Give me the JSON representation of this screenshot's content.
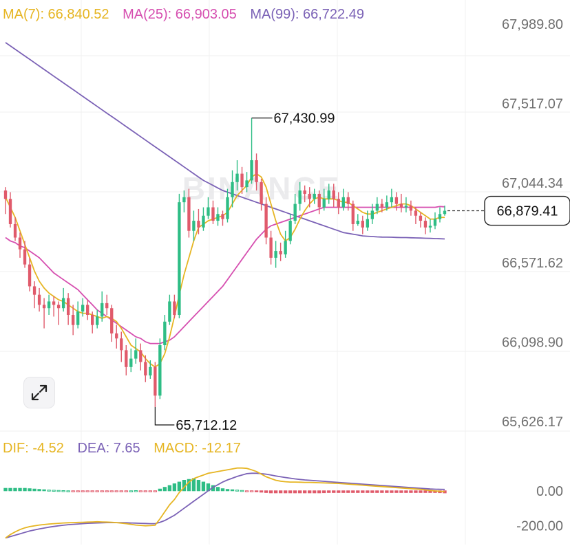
{
  "legend": {
    "ma7": "MA(7): 66,840.52",
    "ma25": "MA(25): 66,903.05",
    "ma99": "MA(99): 66,722.49"
  },
  "macd_legend": {
    "dif": "DIF: -4.52",
    "dea": "DEA: 7.65",
    "macd": "MACD: -12.17"
  },
  "price_axis": {
    "ticks": [
      "67,989.80",
      "67,517.07",
      "67,044.34",
      "66,571.62",
      "66,098.90",
      "65,626.17"
    ],
    "tick_values": [
      67989.8,
      67517.07,
      67044.34,
      66571.62,
      66098.9,
      65626.17
    ]
  },
  "macd_axis": {
    "ticks": [
      "0.00",
      "-200.00"
    ],
    "tick_values": [
      0,
      -200
    ]
  },
  "current_price": {
    "label": "66,879.41",
    "value": 66879.41
  },
  "high_marker": {
    "label": "67,430.99",
    "value": 67430.99
  },
  "low_marker": {
    "label": "65,712.12",
    "value": 65712.12
  },
  "watermark": "BINANCE",
  "colors": {
    "up": "#2ebd85",
    "down": "#e05a6b",
    "ma7": "#e6b522",
    "ma25": "#d64fb0",
    "ma99": "#7b62b6",
    "dif": "#e6b522",
    "dea": "#7b62b6",
    "axis_text": "#6f6f6f",
    "grid": "#eeeeee"
  },
  "icons": {
    "expand": "expand-arrows-icon"
  },
  "chart_data": {
    "type": "candlestick",
    "title": "",
    "ylim": [
      65550,
      68100
    ],
    "grid": true,
    "candles": [
      [
        67000,
        66950,
        67020,
        66860
      ],
      [
        66950,
        66800,
        66990,
        66780
      ],
      [
        66800,
        66720,
        66840,
        66700
      ],
      [
        66720,
        66650,
        66750,
        66600
      ],
      [
        66650,
        66560,
        66700,
        66540
      ],
      [
        66560,
        66430,
        66600,
        66400
      ],
      [
        66430,
        66380,
        66460,
        66300
      ],
      [
        66380,
        66320,
        66420,
        66280
      ],
      [
        66320,
        66300,
        66360,
        66180
      ],
      [
        66300,
        66340,
        66380,
        66260
      ],
      [
        66340,
        66320,
        66370,
        66250
      ],
      [
        66320,
        66300,
        66340,
        66200
      ],
      [
        66300,
        66360,
        66420,
        66280
      ],
      [
        66360,
        66260,
        66390,
        66200
      ],
      [
        66260,
        66200,
        66320,
        66140
      ],
      [
        66200,
        66280,
        66340,
        66180
      ],
      [
        66280,
        66320,
        66360,
        66250
      ],
      [
        66320,
        66260,
        66350,
        66230
      ],
      [
        66260,
        66200,
        66280,
        66150
      ],
      [
        66200,
        66250,
        66290,
        66180
      ],
      [
        66250,
        66330,
        66400,
        66220
      ],
      [
        66330,
        66300,
        66380,
        66260
      ],
      [
        66300,
        66150,
        66320,
        66100
      ],
      [
        66150,
        66120,
        66200,
        66060
      ],
      [
        66120,
        66050,
        66160,
        65980
      ],
      [
        66050,
        65950,
        66080,
        65900
      ],
      [
        65950,
        66000,
        66060,
        65920
      ],
      [
        66000,
        66050,
        66120,
        65970
      ],
      [
        66050,
        65980,
        66090,
        65930
      ],
      [
        65980,
        65900,
        66020,
        65860
      ],
      [
        65900,
        65950,
        65990,
        65880
      ],
      [
        65950,
        65780,
        65980,
        65712.12
      ],
      [
        65780,
        66080,
        66120,
        65760
      ],
      [
        66080,
        66220,
        66260,
        66050
      ],
      [
        66220,
        66340,
        66380,
        66200
      ],
      [
        66340,
        66260,
        66380,
        66240
      ],
      [
        66260,
        66930,
        66980,
        66240
      ],
      [
        66930,
        66960,
        67000,
        66870
      ],
      [
        66960,
        66760,
        67010,
        66720
      ],
      [
        66760,
        66820,
        66880,
        66700
      ],
      [
        66820,
        66780,
        66890,
        66740
      ],
      [
        66780,
        66850,
        66900,
        66760
      ],
      [
        66850,
        66900,
        66960,
        66830
      ],
      [
        66900,
        66820,
        66940,
        66800
      ],
      [
        66820,
        66860,
        66900,
        66790
      ],
      [
        66860,
        66830,
        66880,
        66790
      ],
      [
        66830,
        66960,
        67010,
        66810
      ],
      [
        66960,
        67050,
        67120,
        66900
      ],
      [
        67050,
        67100,
        67180,
        67000
      ],
      [
        67100,
        67020,
        67140,
        66980
      ],
      [
        67020,
        67060,
        67110,
        66990
      ],
      [
        67060,
        67180,
        67430.99,
        67040
      ],
      [
        67180,
        67050,
        67220,
        67000
      ],
      [
        67050,
        66920,
        67070,
        66880
      ],
      [
        66920,
        66720,
        66960,
        66680
      ],
      [
        66720,
        66600,
        66760,
        66560
      ],
      [
        66600,
        66640,
        66700,
        66540
      ],
      [
        66640,
        66620,
        66690,
        66580
      ],
      [
        66620,
        66700,
        66760,
        66600
      ],
      [
        66700,
        66820,
        66860,
        66680
      ],
      [
        66820,
        66920,
        66980,
        66800
      ],
      [
        66920,
        67000,
        67050,
        66880
      ],
      [
        67000,
        66980,
        67030,
        66930
      ],
      [
        66980,
        66950,
        67020,
        66900
      ],
      [
        66950,
        66980,
        67010,
        66920
      ],
      [
        66980,
        66900,
        67000,
        66860
      ],
      [
        66900,
        66950,
        67010,
        66880
      ],
      [
        66950,
        67000,
        67040,
        66920
      ],
      [
        67000,
        66950,
        67040,
        66900
      ],
      [
        66950,
        66900,
        66990,
        66860
      ],
      [
        66900,
        66960,
        67010,
        66880
      ],
      [
        66960,
        66920,
        66990,
        66880
      ],
      [
        66920,
        66800,
        66940,
        66760
      ],
      [
        66800,
        66820,
        66860,
        66790
      ],
      [
        66820,
        66780,
        66850,
        66740
      ],
      [
        66780,
        66830,
        66880,
        66760
      ],
      [
        66830,
        66880,
        66920,
        66800
      ],
      [
        66880,
        66920,
        66960,
        66860
      ],
      [
        66920,
        66900,
        66950,
        66870
      ],
      [
        66900,
        66930,
        66970,
        66880
      ],
      [
        66930,
        66960,
        67010,
        66900
      ],
      [
        66960,
        66920,
        66990,
        66880
      ],
      [
        66920,
        66900,
        66980,
        66870
      ],
      [
        66900,
        66910,
        66960,
        66870
      ],
      [
        66910,
        66880,
        66940,
        66850
      ],
      [
        66880,
        66850,
        66900,
        66800
      ],
      [
        66850,
        66820,
        66870,
        66780
      ],
      [
        66820,
        66780,
        66840,
        66740
      ],
      [
        66780,
        66790,
        66830,
        66750
      ],
      [
        66790,
        66830,
        66870,
        66770
      ],
      [
        66830,
        66860,
        66900,
        66810
      ],
      [
        66860,
        66879.41,
        66910,
        66850
      ]
    ],
    "ma7": [
      66960,
      66900,
      66840,
      66760,
      66680,
      66600,
      66520,
      66460,
      66420,
      66390,
      66370,
      66350,
      66340,
      66320,
      66300,
      66280,
      66270,
      66270,
      66260,
      66250,
      66240,
      66250,
      66240,
      66220,
      66180,
      66130,
      66080,
      66060,
      66040,
      66000,
      65970,
      65950,
      65970,
      66030,
      66130,
      66250,
      66380,
      66500,
      66600,
      66700,
      66780,
      66800,
      66820,
      66830,
      66840,
      66850,
      66870,
      66920,
      66970,
      67000,
      67030,
      67080,
      67100,
      67080,
      67020,
      66920,
      66820,
      66740,
      66700,
      66720,
      66770,
      66830,
      66880,
      66920,
      66950,
      66960,
      66950,
      66950,
      66950,
      66940,
      66930,
      66930,
      66910,
      66890,
      66870,
      66860,
      66860,
      66870,
      66880,
      66890,
      66900,
      66910,
      66920,
      66920,
      66910,
      66890,
      66870,
      66850,
      66830,
      66830,
      66840,
      66840
    ],
    "ma25": [
      66720,
      66700,
      66690,
      66670,
      66660,
      66640,
      66620,
      66600,
      66570,
      66540,
      66510,
      66490,
      66470,
      66450,
      66430,
      66410,
      66380,
      66350,
      66320,
      66290,
      66270,
      66250,
      66230,
      66210,
      66190,
      66170,
      66150,
      66130,
      66120,
      66100,
      66090,
      66090,
      66090,
      66100,
      66110,
      66130,
      66160,
      66190,
      66220,
      66250,
      66280,
      66310,
      66340,
      66370,
      66400,
      66430,
      66470,
      66510,
      66550,
      66590,
      66630,
      66670,
      66710,
      66740,
      66770,
      66790,
      66800,
      66810,
      66820,
      66830,
      66840,
      66850,
      66860,
      66870,
      66880,
      66890,
      66900,
      66900,
      66900,
      66900,
      66900,
      66900,
      66900,
      66900,
      66900,
      66900,
      66900,
      66900,
      66900,
      66900,
      66900,
      66900,
      66900,
      66900,
      66900,
      66900,
      66900,
      66900,
      66900,
      66900,
      66905,
      66903.05
    ],
    "ma99": [
      67880,
      67860,
      67840,
      67820,
      67800,
      67780,
      67760,
      67740,
      67720,
      67700,
      67680,
      67660,
      67640,
      67620,
      67600,
      67580,
      67560,
      67540,
      67520,
      67500,
      67480,
      67460,
      67440,
      67420,
      67400,
      67380,
      67360,
      67340,
      67320,
      67300,
      67280,
      67260,
      67240,
      67220,
      67200,
      67180,
      67160,
      67140,
      67120,
      67100,
      67080,
      67060,
      67045,
      67030,
      67015,
      67000,
      66990,
      66980,
      66970,
      66960,
      66950,
      66940,
      66930,
      66920,
      66910,
      66900,
      66890,
      66880,
      66870,
      66860,
      66850,
      66840,
      66830,
      66820,
      66810,
      66800,
      66790,
      66780,
      66770,
      66760,
      66750,
      66745,
      66740,
      66735,
      66730,
      66728,
      66726,
      66724,
      66723,
      66722.49,
      66722,
      66721,
      66720,
      66720,
      66719,
      66718,
      66717,
      66716,
      66715,
      66714,
      66713,
      66712
    ],
    "macd": {
      "ylim": [
        -280,
        180
      ],
      "dif": [
        -270,
        -250,
        -235,
        -222,
        -212,
        -205,
        -200,
        -196,
        -193,
        -190,
        -188,
        -186,
        -184,
        -183,
        -182,
        -181,
        -180,
        -179,
        -178,
        -177,
        -178,
        -179,
        -180,
        -182,
        -185,
        -188,
        -192,
        -196,
        -198,
        -200,
        -199,
        -197,
        -160,
        -120,
        -80,
        -50,
        -10,
        20,
        50,
        70,
        80,
        90,
        100,
        105,
        110,
        115,
        120,
        125,
        130,
        130,
        128,
        120,
        110,
        95,
        80,
        70,
        60,
        55,
        52,
        50,
        50,
        49,
        48,
        48,
        47,
        46,
        45,
        44,
        43,
        42,
        40,
        38,
        36,
        34,
        32,
        30,
        28,
        26,
        24,
        22,
        20,
        18,
        16,
        14,
        12,
        10,
        8,
        5,
        2,
        -1,
        -3,
        -4.52
      ],
      "dea": [
        -270,
        -262,
        -254,
        -246,
        -238,
        -230,
        -224,
        -218,
        -213,
        -208,
        -204,
        -200,
        -197,
        -194,
        -192,
        -190,
        -188,
        -186,
        -185,
        -184,
        -183,
        -182,
        -182,
        -182,
        -182,
        -183,
        -184,
        -185,
        -186,
        -187,
        -188,
        -188,
        -180,
        -170,
        -155,
        -140,
        -120,
        -100,
        -80,
        -60,
        -40,
        -20,
        0,
        20,
        35,
        50,
        62,
        72,
        82,
        90,
        98,
        100,
        100,
        98,
        95,
        90,
        85,
        80,
        76,
        72,
        68,
        65,
        62,
        60,
        58,
        56,
        54,
        52,
        50,
        48,
        46,
        44,
        42,
        40,
        38,
        36,
        34,
        32,
        30,
        28,
        26,
        24,
        22,
        20,
        18,
        16,
        14,
        12,
        10,
        9,
        8,
        7.65
      ],
      "hist": [
        14,
        14,
        14,
        14,
        14,
        12,
        10,
        8,
        6,
        4,
        3,
        2,
        1,
        0,
        -1,
        -1,
        -2,
        -2,
        -3,
        -3,
        -3,
        -3,
        -3,
        -2,
        -1,
        -1,
        0,
        1,
        -2,
        -3,
        -4,
        -3,
        10,
        20,
        30,
        40,
        50,
        60,
        65,
        70,
        60,
        50,
        40,
        30,
        20,
        12,
        8,
        6,
        4,
        2,
        -2,
        -4,
        -6,
        -8,
        -10,
        -12,
        -12,
        -12,
        -12,
        -12,
        -12,
        -12,
        -12,
        -12,
        -12,
        -12,
        -11,
        -10,
        -10,
        -10,
        -10,
        -10,
        -10,
        -10,
        -10,
        -10,
        -10,
        -10,
        -10,
        -10,
        -10,
        -10,
        -10,
        -10,
        -10,
        -10,
        -10,
        -10,
        -10,
        -10,
        -11,
        -12.17
      ]
    }
  }
}
